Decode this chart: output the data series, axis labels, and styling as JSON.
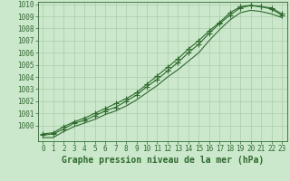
{
  "title": "Graphe pression niveau de la mer (hPa)",
  "xlabel_hours": [
    0,
    1,
    2,
    3,
    4,
    5,
    6,
    7,
    8,
    9,
    10,
    11,
    12,
    13,
    14,
    15,
    16,
    17,
    18,
    19,
    20,
    21,
    22,
    23
  ],
  "line1": [
    999.3,
    999.4,
    999.9,
    1000.3,
    1000.6,
    1001.0,
    1001.4,
    1001.8,
    1002.2,
    1002.7,
    1003.4,
    1004.1,
    1004.8,
    1005.5,
    1006.3,
    1007.0,
    1007.8,
    1008.5,
    1009.3,
    1009.8,
    1009.9,
    1009.8,
    1009.7,
    1009.2
  ],
  "line2": [
    999.2,
    999.3,
    999.7,
    1000.2,
    1000.4,
    1000.8,
    1001.2,
    1001.5,
    1002.0,
    1002.5,
    1003.2,
    1003.8,
    1004.5,
    1005.2,
    1006.0,
    1006.7,
    1007.6,
    1008.4,
    1009.1,
    1009.7,
    1009.9,
    1009.8,
    1009.6,
    1009.1
  ],
  "line3": [
    999.0,
    999.0,
    999.5,
    999.9,
    1000.2,
    1000.5,
    1000.9,
    1001.2,
    1001.6,
    1002.1,
    1002.7,
    1003.3,
    1004.0,
    1004.6,
    1005.3,
    1006.0,
    1007.0,
    1007.9,
    1008.7,
    1009.3,
    1009.5,
    1009.4,
    1009.2,
    1008.9
  ],
  "line_color": "#2d6a2d",
  "background_color": "#cce8cc",
  "grid_color": "#aaccaa",
  "ylim_min": 999.0,
  "ylim_max": 1010.2,
  "yticks": [
    1000,
    1001,
    1002,
    1003,
    1004,
    1005,
    1006,
    1007,
    1008,
    1009,
    1010
  ],
  "title_fontsize": 7,
  "tick_fontsize": 5.5,
  "marker": "+",
  "marker_size": 4,
  "linewidth": 0.8
}
